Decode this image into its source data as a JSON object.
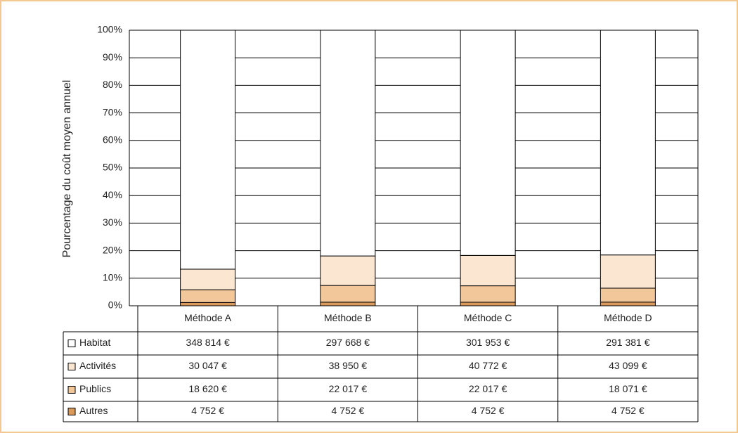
{
  "chart_data": {
    "type": "stacked100",
    "y_label": "Pourcentage du coût moyen annuel",
    "categories": [
      "Méthode A",
      "Méthode B",
      "Méthode C",
      "Méthode D"
    ],
    "series": [
      {
        "name": "Habitat",
        "color": "#ffffff",
        "values": [
          348814,
          297668,
          301953,
          291381
        ],
        "value_labels": [
          "348 814 €",
          "297 668 €",
          "301 953 €",
          "291 381 €"
        ]
      },
      {
        "name": "Activités",
        "color": "#fbe6d2",
        "values": [
          30047,
          38950,
          40772,
          43099
        ],
        "value_labels": [
          "30 047 €",
          "38 950 €",
          "40 772 €",
          "43 099 €"
        ]
      },
      {
        "name": "Publics",
        "color": "#f2c79a",
        "values": [
          18620,
          22017,
          22017,
          18071
        ],
        "value_labels": [
          "18 620 €",
          "22 017 €",
          "22 017 €",
          "18 071 €"
        ]
      },
      {
        "name": "Autres",
        "color": "#d99a5c",
        "values": [
          4752,
          4752,
          4752,
          4752
        ],
        "value_labels": [
          "4 752 €",
          "4 752 €",
          "4 752 €",
          "4 752 €"
        ]
      }
    ],
    "ylim": [
      0,
      100
    ],
    "yticks": [
      {
        "value": 0,
        "label": "0%"
      },
      {
        "value": 10,
        "label": "10%"
      },
      {
        "value": 20,
        "label": "20%"
      },
      {
        "value": 30,
        "label": "30%"
      },
      {
        "value": 40,
        "label": "40%"
      },
      {
        "value": 50,
        "label": "50%"
      },
      {
        "value": 60,
        "label": "60%"
      },
      {
        "value": 70,
        "label": "70%"
      },
      {
        "value": 80,
        "label": "80%"
      },
      {
        "value": 90,
        "label": "90%"
      },
      {
        "value": 100,
        "label": "100%"
      }
    ],
    "grid": true
  }
}
